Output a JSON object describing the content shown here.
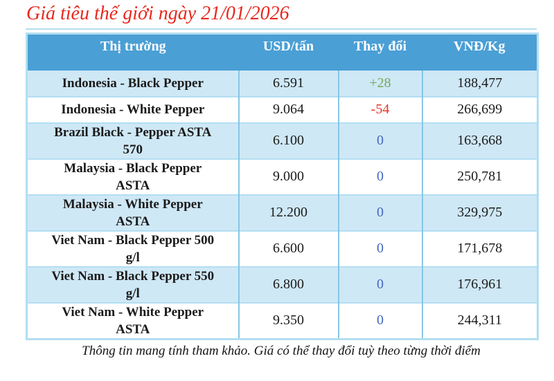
{
  "title": "Giá tiêu thế giới ngày 21/01/2026",
  "table": {
    "columns": [
      "Thị trường",
      "USD/tấn",
      "Thay đổi",
      "VNĐ/Kg"
    ],
    "rows": [
      {
        "market": "Indonesia - Black Pepper",
        "usd": "6.591",
        "change": "+28",
        "change_type": "up",
        "vnd": "188,477"
      },
      {
        "market": "Indonesia - White Pepper",
        "usd": "9.064",
        "change": "-54",
        "change_type": "down",
        "vnd": "266,699"
      },
      {
        "market": "Brazil Black - Pepper ASTA\n570",
        "usd": "6.100",
        "change": "0",
        "change_type": "zero",
        "vnd": "163,668"
      },
      {
        "market": "Malaysia - Black Pepper\nASTA",
        "usd": "9.000",
        "change": "0",
        "change_type": "zero",
        "vnd": "250,781"
      },
      {
        "market": "Malaysia - White Pepper\nASTA",
        "usd": "12.200",
        "change": "0",
        "change_type": "zero",
        "vnd": "329,975"
      },
      {
        "market": "Viet Nam - Black Pepper 500\ng/l",
        "usd": "6.600",
        "change": "0",
        "change_type": "zero",
        "vnd": "171,678"
      },
      {
        "market": "Viet Nam - Black Pepper 550\ng/l",
        "usd": "6.800",
        "change": "0",
        "change_type": "zero",
        "vnd": "176,961"
      },
      {
        "market": "Viet Nam - White Pepper\nASTA",
        "usd": "9.350",
        "change": "0",
        "change_type": "zero",
        "vnd": "244,311"
      }
    ]
  },
  "footer": "Thông tin mang tính tham khảo. Giá có thể thay đổi tuỳ theo từng thời điểm",
  "colors": {
    "title": "#e8281e",
    "header_bg": "#4a9fd5",
    "row_alt_bg": "#cfe8f6",
    "border_light": "#b2def1",
    "border_mid": "#86c6e6",
    "up": "#76a85a",
    "down": "#e43328",
    "zero": "#4466c4"
  }
}
